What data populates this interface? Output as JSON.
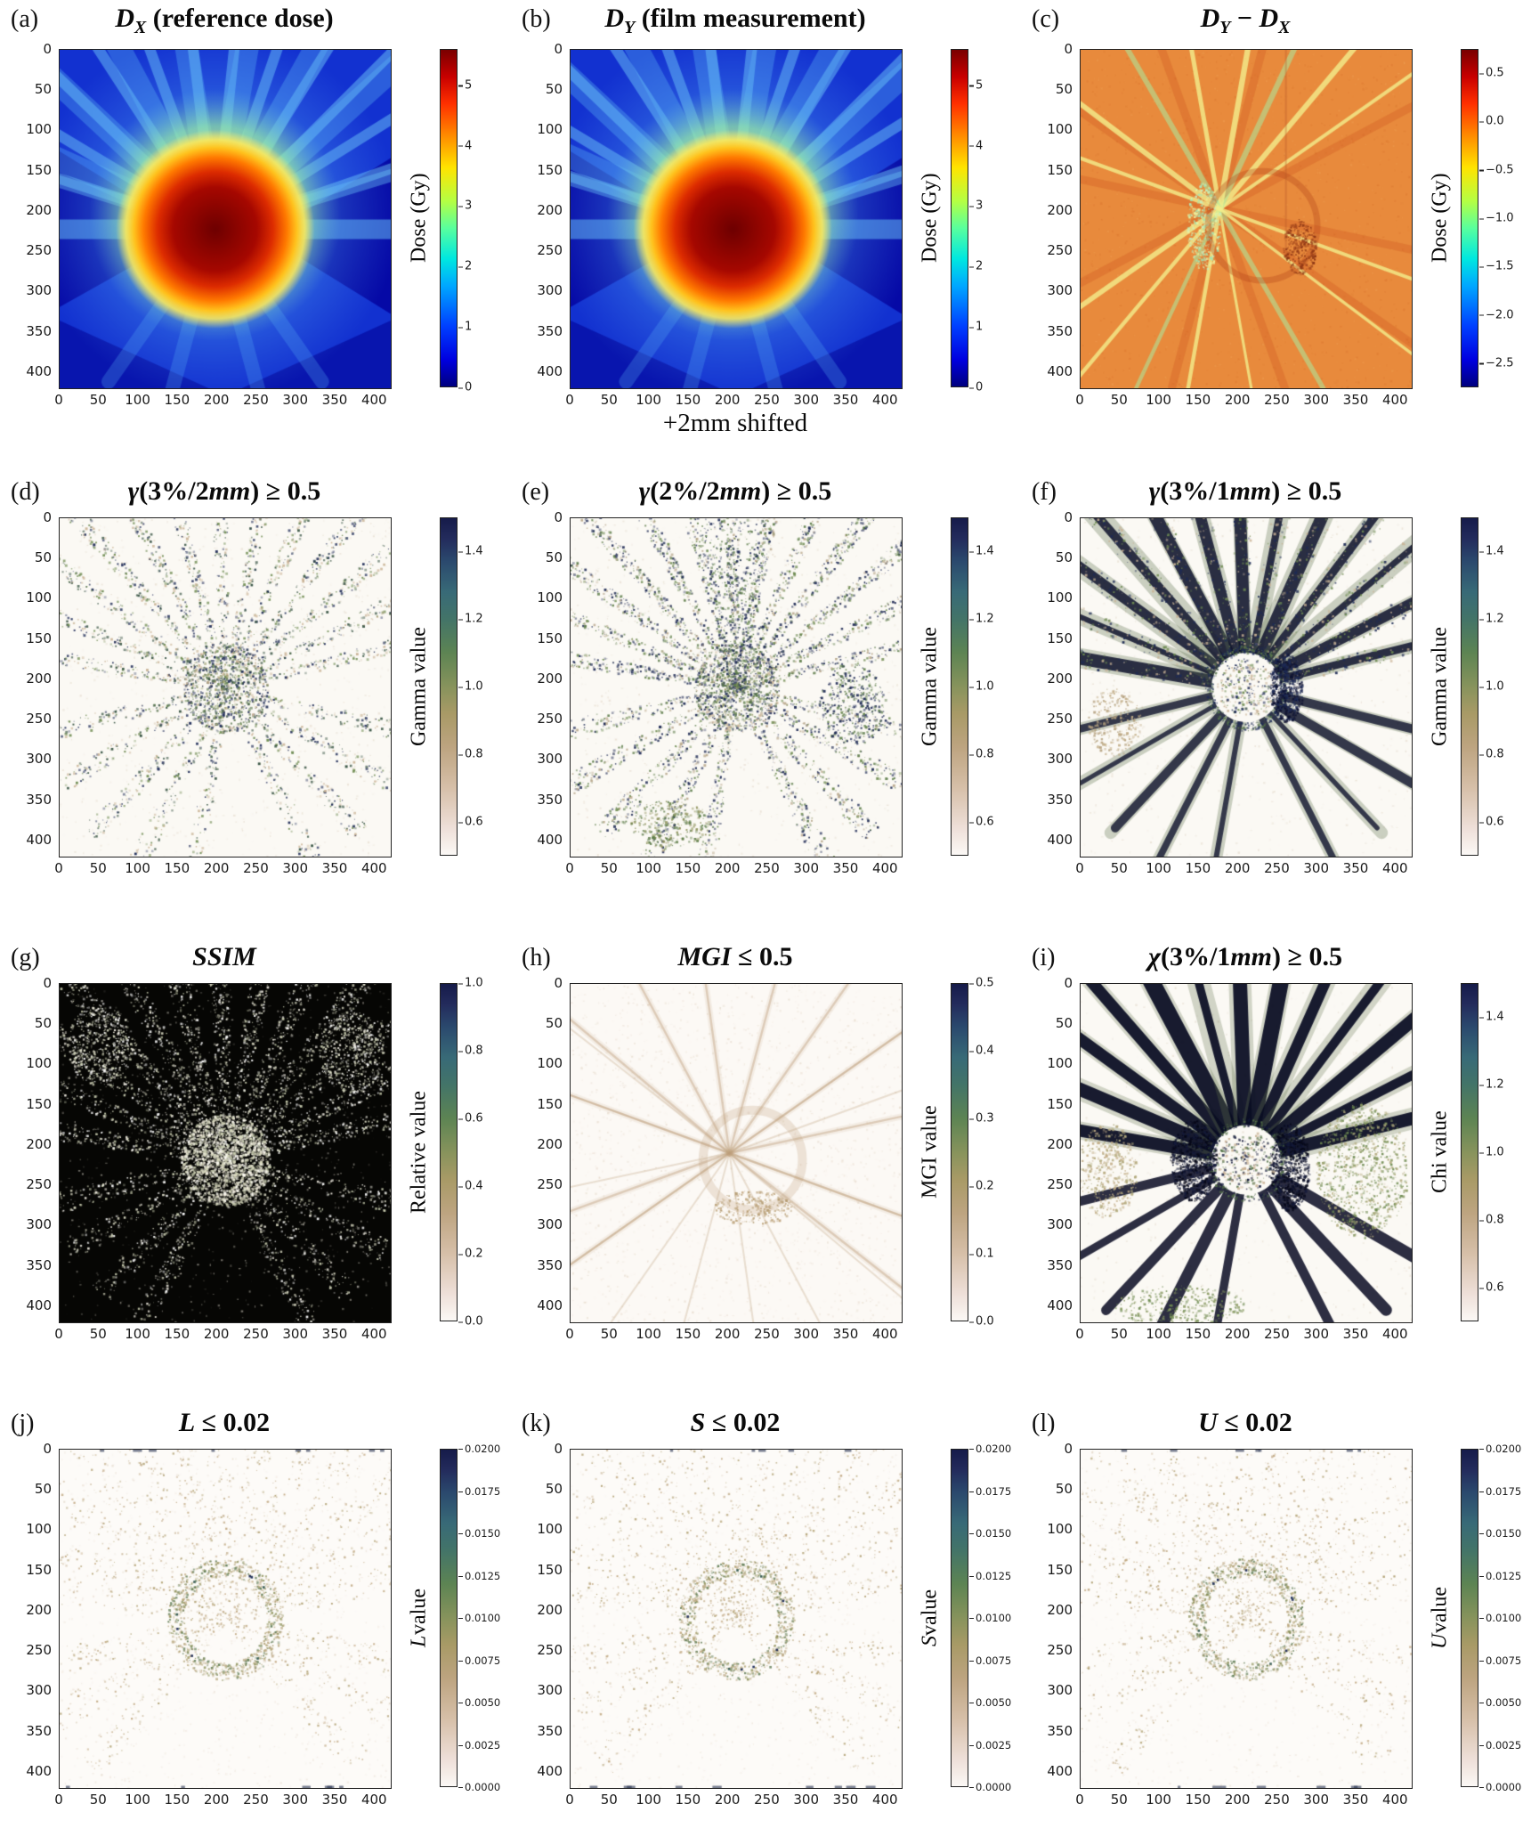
{
  "axes": {
    "xticks": [
      "0",
      "50",
      "100",
      "150",
      "200",
      "250",
      "300",
      "350",
      "400"
    ],
    "yticks": [
      "0",
      "50",
      "100",
      "150",
      "200",
      "250",
      "300",
      "350",
      "400"
    ],
    "tick_values": [
      0,
      50,
      100,
      150,
      200,
      250,
      300,
      350,
      400
    ],
    "range": [
      0,
      420
    ]
  },
  "chart_data": [
    {
      "panel": "a",
      "panel_label": "(a)",
      "type": "heatmap",
      "title": "D_X (reference dose)",
      "title_segments": [
        {
          "t": "D",
          "i": 1
        },
        {
          "t": "X",
          "sub": 1
        },
        {
          "t": " (reference dose)"
        }
      ],
      "render_style": "jetA",
      "seed": 1,
      "colorbar": {
        "label": "Dose (Gy)",
        "label_segments": [
          {
            "t": "Dose (Gy)"
          }
        ],
        "colormap": "jet",
        "vmin": 0,
        "vmax": 5.6,
        "ticks": [
          {
            "label": "5",
            "v": 5
          },
          {
            "label": "4",
            "v": 4
          },
          {
            "label": "3",
            "v": 3
          },
          {
            "label": "2",
            "v": 2
          },
          {
            "label": "1",
            "v": 1
          },
          {
            "label": "0",
            "v": 0
          }
        ]
      }
    },
    {
      "panel": "b",
      "panel_label": "(b)",
      "type": "heatmap",
      "title": "D_Y (film measurement)",
      "title_segments": [
        {
          "t": "D",
          "i": 1
        },
        {
          "t": "Y",
          "sub": 1
        },
        {
          "t": " (film measurement)"
        }
      ],
      "caption": "+2mm shifted",
      "render_style": "jetB",
      "seed": 2,
      "colorbar": {
        "label": "Dose (Gy)",
        "label_segments": [
          {
            "t": "Dose (Gy)"
          }
        ],
        "colormap": "jet",
        "vmin": 0,
        "vmax": 5.6,
        "ticks": [
          {
            "label": "5",
            "v": 5
          },
          {
            "label": "4",
            "v": 4
          },
          {
            "label": "3",
            "v": 3
          },
          {
            "label": "2",
            "v": 2
          },
          {
            "label": "1",
            "v": 1
          },
          {
            "label": "0",
            "v": 0
          }
        ]
      }
    },
    {
      "panel": "c",
      "panel_label": "(c)",
      "type": "heatmap",
      "title": "D_Y − D_X",
      "title_segments": [
        {
          "t": "D",
          "i": 1
        },
        {
          "t": "Y",
          "sub": 1
        },
        {
          "t": " − "
        },
        {
          "t": "D",
          "i": 1
        },
        {
          "t": "X",
          "sub": 1
        }
      ],
      "render_style": "diff",
      "seed": 3,
      "colorbar": {
        "label": "Dose (Gy)",
        "label_segments": [
          {
            "t": "Dose (Gy)"
          }
        ],
        "colormap": "jet",
        "vmin": -2.75,
        "vmax": 0.75,
        "ticks": [
          {
            "label": "0.5",
            "v": 0.5
          },
          {
            "label": "0.0",
            "v": 0
          },
          {
            "label": "−0.5",
            "v": -0.5
          },
          {
            "label": "−1.0",
            "v": -1
          },
          {
            "label": "−1.5",
            "v": -1.5
          },
          {
            "label": "−2.0",
            "v": -2
          },
          {
            "label": "−2.5",
            "v": -2.5
          }
        ]
      }
    },
    {
      "panel": "d",
      "panel_label": "(d)",
      "type": "heatmap",
      "title": "γ(3%/2mm) ≥ 0.5",
      "title_segments": [
        {
          "t": "γ",
          "i": 1
        },
        {
          "t": "(3%/2"
        },
        {
          "t": "mm",
          "i": 1
        },
        {
          "t": ") ≥ 0.5"
        }
      ],
      "render_style": "gamma1",
      "seed": 11,
      "colorbar": {
        "label": "Gamma value",
        "label_segments": [
          {
            "t": "Gamma value"
          }
        ],
        "colormap": "earth",
        "vmin": 0.5,
        "vmax": 1.5,
        "ticks": [
          {
            "label": "1.4",
            "v": 1.4
          },
          {
            "label": "1.2",
            "v": 1.2
          },
          {
            "label": "1.0",
            "v": 1.0
          },
          {
            "label": "0.8",
            "v": 0.8
          },
          {
            "label": "0.6",
            "v": 0.6
          }
        ]
      }
    },
    {
      "panel": "e",
      "panel_label": "(e)",
      "type": "heatmap",
      "title": "γ(2%/2mm) ≥ 0.5",
      "title_segments": [
        {
          "t": "γ",
          "i": 1
        },
        {
          "t": "(2%/2"
        },
        {
          "t": "mm",
          "i": 1
        },
        {
          "t": ") ≥ 0.5"
        }
      ],
      "render_style": "gamma2",
      "seed": 22,
      "colorbar": {
        "label": "Gamma value",
        "label_segments": [
          {
            "t": "Gamma value"
          }
        ],
        "colormap": "earth",
        "vmin": 0.5,
        "vmax": 1.5,
        "ticks": [
          {
            "label": "1.4",
            "v": 1.4
          },
          {
            "label": "1.2",
            "v": 1.2
          },
          {
            "label": "1.0",
            "v": 1.0
          },
          {
            "label": "0.8",
            "v": 0.8
          },
          {
            "label": "0.6",
            "v": 0.6
          }
        ]
      }
    },
    {
      "panel": "f",
      "panel_label": "(f)",
      "type": "heatmap",
      "title": "γ(3%/1mm) ≥ 0.5",
      "title_segments": [
        {
          "t": "γ",
          "i": 1
        },
        {
          "t": "(3%/1"
        },
        {
          "t": "mm",
          "i": 1
        },
        {
          "t": ") ≥ 0.5"
        }
      ],
      "render_style": "gammaBold",
      "seed": 33,
      "colorbar": {
        "label": "Gamma value",
        "label_segments": [
          {
            "t": "Gamma value"
          }
        ],
        "colormap": "earth",
        "vmin": 0.5,
        "vmax": 1.5,
        "ticks": [
          {
            "label": "1.4",
            "v": 1.4
          },
          {
            "label": "1.2",
            "v": 1.2
          },
          {
            "label": "1.0",
            "v": 1.0
          },
          {
            "label": "0.8",
            "v": 0.8
          },
          {
            "label": "0.6",
            "v": 0.6
          }
        ]
      }
    },
    {
      "panel": "g",
      "panel_label": "(g)",
      "type": "heatmap",
      "title": "SSIM",
      "title_segments": [
        {
          "t": "SSIM",
          "i": 1
        }
      ],
      "render_style": "ssim",
      "seed": 44,
      "colorbar": {
        "label": "Relative value",
        "label_segments": [
          {
            "t": "Relative value"
          }
        ],
        "colormap": "earth",
        "vmin": 0,
        "vmax": 1,
        "ticks": [
          {
            "label": "1.0",
            "v": 1.0
          },
          {
            "label": "0.8",
            "v": 0.8
          },
          {
            "label": "0.6",
            "v": 0.6
          },
          {
            "label": "0.4",
            "v": 0.4
          },
          {
            "label": "0.2",
            "v": 0.2
          },
          {
            "label": "0.0",
            "v": 0.0
          }
        ]
      }
    },
    {
      "panel": "h",
      "panel_label": "(h)",
      "type": "heatmap",
      "title": "MGI ≤ 0.5",
      "title_segments": [
        {
          "t": "MGI",
          "i": 1
        },
        {
          "t": " ≤ 0.5"
        }
      ],
      "render_style": "mgi",
      "seed": 55,
      "colorbar": {
        "label": "MGI value",
        "label_segments": [
          {
            "t": "MGI value"
          }
        ],
        "colormap": "earth",
        "vmin": 0,
        "vmax": 0.5,
        "ticks": [
          {
            "label": "0.5",
            "v": 0.5
          },
          {
            "label": "0.4",
            "v": 0.4
          },
          {
            "label": "0.3",
            "v": 0.3
          },
          {
            "label": "0.2",
            "v": 0.2
          },
          {
            "label": "0.1",
            "v": 0.1
          },
          {
            "label": "0.0",
            "v": 0.0
          }
        ]
      }
    },
    {
      "panel": "i",
      "panel_label": "(i)",
      "type": "heatmap",
      "title": "χ(3%/1mm) ≥ 0.5",
      "title_segments": [
        {
          "t": "χ",
          "i": 1
        },
        {
          "t": "(3%/1"
        },
        {
          "t": "mm",
          "i": 1
        },
        {
          "t": ") ≥ 0.5"
        }
      ],
      "render_style": "chi",
      "seed": 66,
      "colorbar": {
        "label": "Chi value",
        "label_segments": [
          {
            "t": "Chi value"
          }
        ],
        "colormap": "earth",
        "vmin": 0.5,
        "vmax": 1.5,
        "ticks": [
          {
            "label": "1.4",
            "v": 1.4
          },
          {
            "label": "1.2",
            "v": 1.2
          },
          {
            "label": "1.0",
            "v": 1.0
          },
          {
            "label": "0.8",
            "v": 0.8
          },
          {
            "label": "0.6",
            "v": 0.6
          }
        ]
      }
    },
    {
      "panel": "j",
      "panel_label": "(j)",
      "type": "heatmap",
      "title": "L ≤ 0.02",
      "title_segments": [
        {
          "t": "L",
          "i": 1
        },
        {
          "t": " ≤ 0.02"
        }
      ],
      "render_style": "lsu",
      "seed": 91,
      "cb_small": true,
      "colorbar": {
        "label": "L value",
        "label_segments": [
          {
            "t": "L",
            "i": 1
          },
          {
            "t": " value"
          }
        ],
        "colormap": "earth",
        "vmin": 0,
        "vmax": 0.02,
        "ticks": [
          {
            "label": "0.0200",
            "v": 0.02
          },
          {
            "label": "0.0175",
            "v": 0.0175
          },
          {
            "label": "0.0150",
            "v": 0.015
          },
          {
            "label": "0.0125",
            "v": 0.0125
          },
          {
            "label": "0.0100",
            "v": 0.01
          },
          {
            "label": "0.0075",
            "v": 0.0075
          },
          {
            "label": "0.0050",
            "v": 0.005
          },
          {
            "label": "0.0025",
            "v": 0.0025
          },
          {
            "label": "0.0000",
            "v": 0.0
          }
        ]
      }
    },
    {
      "panel": "k",
      "panel_label": "(k)",
      "type": "heatmap",
      "title": "S ≤ 0.02",
      "title_segments": [
        {
          "t": "S",
          "i": 1
        },
        {
          "t": " ≤ 0.02"
        }
      ],
      "render_style": "lsu",
      "seed": 92,
      "cb_small": true,
      "colorbar": {
        "label": "S value",
        "label_segments": [
          {
            "t": "S",
            "i": 1
          },
          {
            "t": " value"
          }
        ],
        "colormap": "earth",
        "vmin": 0,
        "vmax": 0.02,
        "ticks": [
          {
            "label": "0.0200",
            "v": 0.02
          },
          {
            "label": "0.0175",
            "v": 0.0175
          },
          {
            "label": "0.0150",
            "v": 0.015
          },
          {
            "label": "0.0125",
            "v": 0.0125
          },
          {
            "label": "0.0100",
            "v": 0.01
          },
          {
            "label": "0.0075",
            "v": 0.0075
          },
          {
            "label": "0.0050",
            "v": 0.005
          },
          {
            "label": "0.0025",
            "v": 0.0025
          },
          {
            "label": "0.0000",
            "v": 0.0
          }
        ]
      }
    },
    {
      "panel": "l",
      "panel_label": "(l)",
      "type": "heatmap",
      "title": "U ≤ 0.02",
      "title_segments": [
        {
          "t": "U",
          "i": 1
        },
        {
          "t": " ≤ 0.02"
        }
      ],
      "render_style": "lsu",
      "seed": 93,
      "cb_small": true,
      "colorbar": {
        "label": "U value",
        "label_segments": [
          {
            "t": "U",
            "i": 1
          },
          {
            "t": " value"
          }
        ],
        "colormap": "earth",
        "vmin": 0,
        "vmax": 0.02,
        "ticks": [
          {
            "label": "0.0200",
            "v": 0.02
          },
          {
            "label": "0.0175",
            "v": 0.0175
          },
          {
            "label": "0.0150",
            "v": 0.015
          },
          {
            "label": "0.0125",
            "v": 0.0125
          },
          {
            "label": "0.0100",
            "v": 0.01
          },
          {
            "label": "0.0075",
            "v": 0.0075
          },
          {
            "label": "0.0050",
            "v": 0.005
          },
          {
            "label": "0.0025",
            "v": 0.0025
          },
          {
            "label": "0.0000",
            "v": 0.0
          }
        ]
      }
    }
  ]
}
